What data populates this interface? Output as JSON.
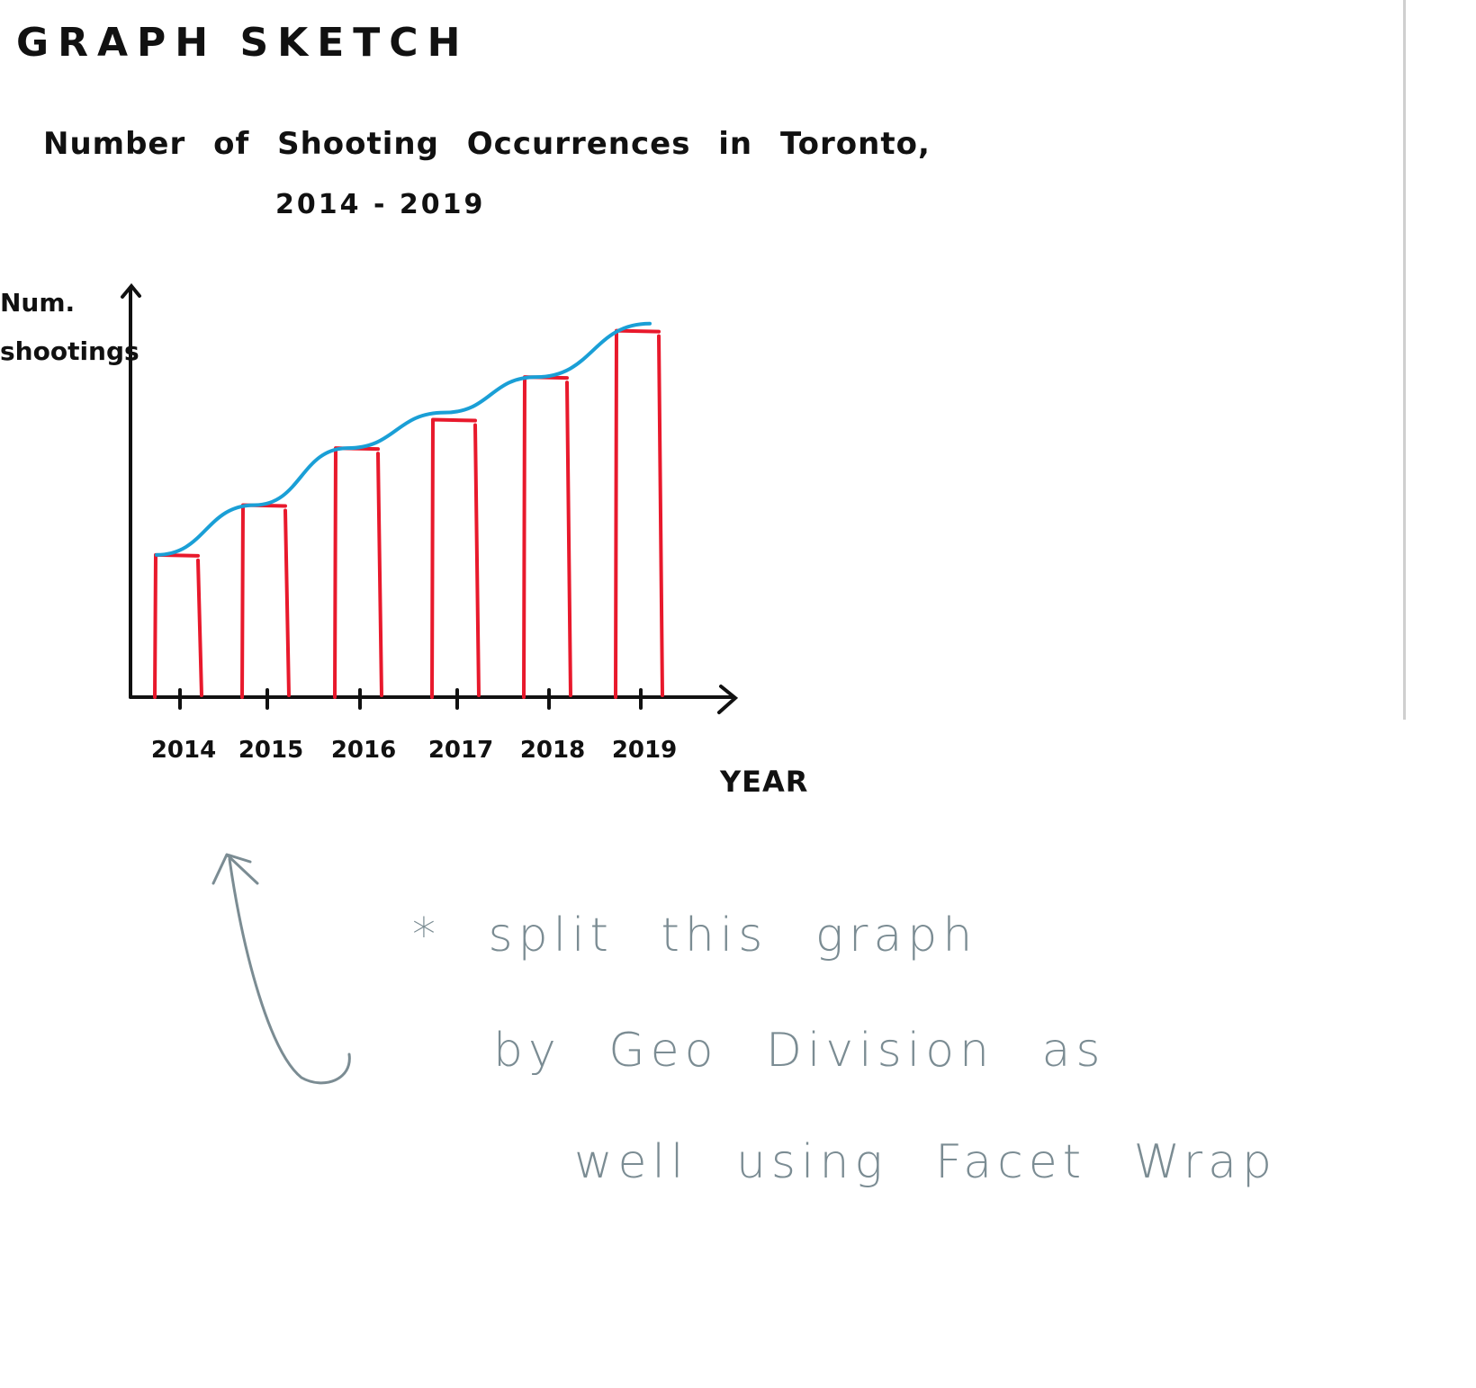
{
  "page": {
    "heading": "GRAPH SKETCH"
  },
  "note": {
    "line1": "* split this graph",
    "line2": "by Geo Division as",
    "line3": "well using Facet Wrap"
  },
  "chart_data": {
    "type": "bar",
    "title": "Number of Shooting Occurrences in Toronto,",
    "subtitle": "2014 - 2019",
    "xlabel": "YEAR",
    "ylabel": "Num. shootings",
    "categories": [
      "2014",
      "2015",
      "2016",
      "2017",
      "2018",
      "2019"
    ],
    "series": [
      {
        "values": [
          40,
          54,
          70,
          78,
          90,
          103
        ]
      }
    ],
    "trend_line": [
      40,
      54,
      70,
      80,
      90,
      105
    ],
    "ylim": [
      0,
      110
    ],
    "grid": false,
    "colors": {
      "bars": "#e8192c",
      "trend": "#1a9fd6",
      "axes": "#111111",
      "note": "#7b8c93"
    }
  }
}
